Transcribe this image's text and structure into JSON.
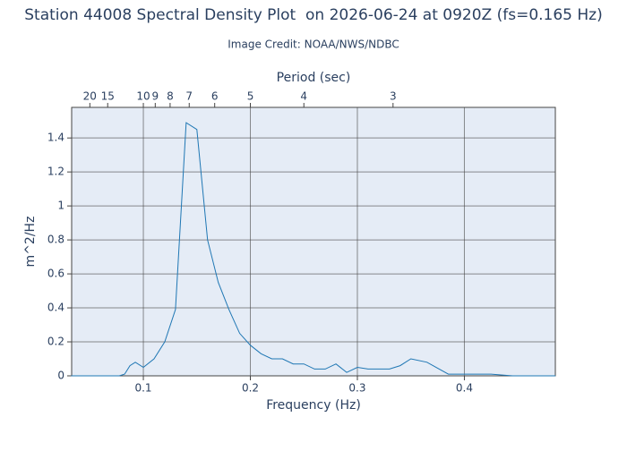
{
  "chart_data": {
    "type": "line",
    "title": "Station 44008 Spectral Density Plot  on 2026-06-24 at 0920Z (fs=0.165 Hz)",
    "subtitle": "Image Credit: NOAA/NWS/NDBC",
    "x_label": "Frequency (Hz)",
    "x2_label": "Period (sec)",
    "y_label": "m^2/Hz",
    "x": [
      0.0325,
      0.0375,
      0.0425,
      0.0475,
      0.0525,
      0.0575,
      0.0625,
      0.0675,
      0.0725,
      0.0775,
      0.0825,
      0.0875,
      0.0925,
      0.1,
      0.11,
      0.12,
      0.13,
      0.14,
      0.15,
      0.16,
      0.17,
      0.18,
      0.19,
      0.2,
      0.21,
      0.22,
      0.23,
      0.24,
      0.25,
      0.26,
      0.27,
      0.28,
      0.29,
      0.3,
      0.31,
      0.32,
      0.33,
      0.34,
      0.35,
      0.365,
      0.385,
      0.405,
      0.425,
      0.445,
      0.465,
      0.485
    ],
    "values": [
      0,
      0,
      0,
      0,
      0,
      0,
      0,
      0,
      0,
      0,
      0.01,
      0.06,
      0.08,
      0.05,
      0.1,
      0.2,
      0.39,
      1.49,
      1.45,
      0.8,
      0.55,
      0.39,
      0.25,
      0.18,
      0.13,
      0.1,
      0.1,
      0.07,
      0.07,
      0.04,
      0.04,
      0.07,
      0.02,
      0.05,
      0.04,
      0.04,
      0.04,
      0.06,
      0.1,
      0.08,
      0.01,
      0.01,
      0.01,
      0,
      0,
      0
    ],
    "color": "#1f77b4",
    "xlim": [
      0.033,
      0.485
    ],
    "xticks": [
      0.1,
      0.2,
      0.3,
      0.4
    ],
    "x2ticks": [
      20,
      15,
      10,
      9,
      8,
      7,
      6,
      5,
      4,
      3
    ],
    "ylim": [
      0,
      1.58
    ],
    "yticks": [
      0,
      0.2,
      0.4,
      0.6,
      0.8,
      1,
      1.2,
      1.4
    ],
    "grid": true
  }
}
